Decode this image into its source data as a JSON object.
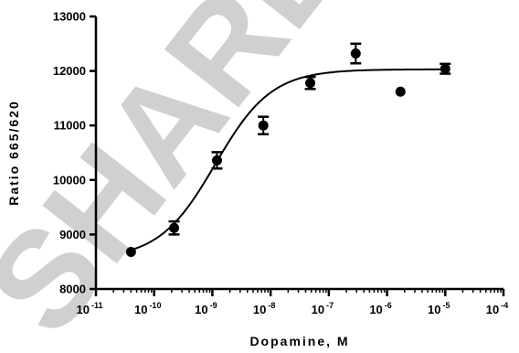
{
  "chart_data": {
    "type": "scatter",
    "title": "",
    "xlabel": "Dopamine, M",
    "ylabel": "Ratio 665/620",
    "x_scale": "log",
    "xlim": [
      1e-11,
      0.0001
    ],
    "ylim": [
      8000,
      13000
    ],
    "x_tick_base": "10",
    "x_tick_exponents": [
      "-11",
      "-10",
      "-9",
      "-8",
      "-7",
      "-6",
      "-5",
      "-4"
    ],
    "y_ticks": [
      "8000",
      "9000",
      "10000",
      "11000",
      "12000",
      "13000"
    ],
    "grid": false,
    "legend": "none",
    "series": [
      {
        "x": [
          4e-11,
          2.2e-10,
          1.2e-09,
          7.5e-09,
          4.8e-08,
          2.9e-07,
          1.7e-06,
          1e-05
        ],
        "y": [
          8680,
          9120,
          10360,
          11000,
          11780,
          12320,
          11620,
          12040
        ],
        "error": [
          0,
          120,
          150,
          160,
          110,
          180,
          0,
          90
        ]
      }
    ],
    "fit_curve": {
      "model": "sigmoidal dose-response",
      "bottom": 8550,
      "top": 12030,
      "log_ec50": -8.95,
      "hill_slope": 0.9
    },
    "watermark_text": "SHARED IN LEV"
  }
}
